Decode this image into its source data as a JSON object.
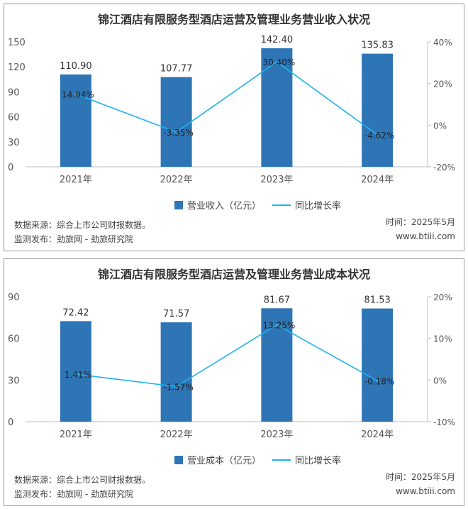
{
  "chart_data": [
    {
      "type": "bar",
      "title": "锦江酒店有限服务型酒店运营及管理业务营业收入状况",
      "categories": [
        "2021年",
        "2022年",
        "2023年",
        "2024年"
      ],
      "series": [
        {
          "name": "营业收入（亿元）",
          "type": "bar",
          "values": [
            110.9,
            107.77,
            142.4,
            135.83
          ],
          "labels": [
            "110.90",
            "107.77",
            "142.40",
            "135.83"
          ],
          "color": "#2e75b6",
          "axis": "left"
        },
        {
          "name": "同比增长率",
          "type": "line",
          "values": [
            14.94,
            -3.35,
            30.4,
            -4.62
          ],
          "labels": [
            "14.94%",
            "-3.35%",
            "30.40%",
            "-4.62%"
          ],
          "color": "#1fb3f0",
          "axis": "right"
        }
      ],
      "ylim": [
        0,
        150
      ],
      "y_ticks": [
        "0",
        "30",
        "60",
        "90",
        "120",
        "150"
      ],
      "y2lim": [
        -20,
        40
      ],
      "y2_ticks": [
        "-20%",
        "0%",
        "20%",
        "40%"
      ],
      "legend_position": "bottom",
      "grid": false,
      "source": "数据来源：综合上市公司财报数据。",
      "publisher": "监测发布：劲旅网 - 劲旅研究院",
      "date": "时间：2025年5月",
      "website": "www.btiii.com"
    },
    {
      "type": "bar",
      "title": "锦江酒店有限服务型酒店运营及管理业务营业成本状况",
      "categories": [
        "2021年",
        "2022年",
        "2023年",
        "2024年"
      ],
      "series": [
        {
          "name": "营业成本（亿元）",
          "type": "bar",
          "values": [
            72.42,
            71.57,
            81.67,
            81.53
          ],
          "labels": [
            "72.42",
            "71.57",
            "81.67",
            "81.53"
          ],
          "color": "#2e75b6",
          "axis": "left"
        },
        {
          "name": "同比增长率",
          "type": "line",
          "values": [
            1.41,
            -1.57,
            13.25,
            -0.18
          ],
          "labels": [
            "1.41%",
            "-1.57%",
            "13.25%",
            "-0.18%"
          ],
          "color": "#1fb3f0",
          "axis": "right"
        }
      ],
      "ylim": [
        0,
        90
      ],
      "y_ticks": [
        "0",
        "30",
        "60",
        "90"
      ],
      "y2lim": [
        -10,
        20
      ],
      "y2_ticks": [
        "-10%",
        "0%",
        "10%",
        "20%"
      ],
      "legend_position": "bottom",
      "grid": false,
      "source": "数据来源：综合上市公司财报数据。",
      "publisher": "监测发布：劲旅网 - 劲旅研究院",
      "date": "时间：2025年5月",
      "website": "www.btiii.com"
    }
  ]
}
